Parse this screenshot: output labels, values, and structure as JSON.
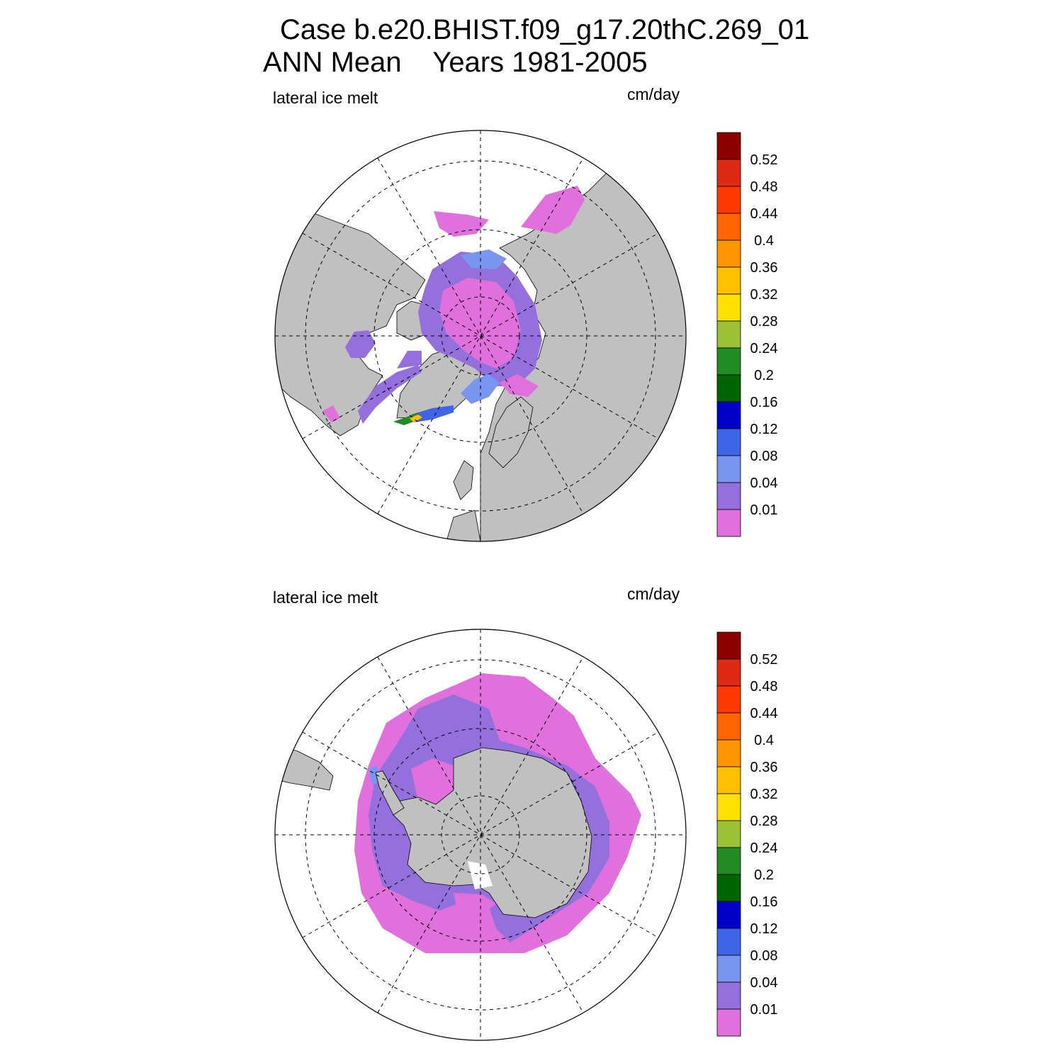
{
  "title": {
    "line1": "Case b.e20.BHIST.f09_g17.20thC.269_01",
    "line2": "ANN Mean    Years 1981-2005"
  },
  "panels": [
    {
      "variable_label": "lateral ice melt",
      "units_label": "cm/day",
      "hemisphere": "north"
    },
    {
      "variable_label": "lateral ice melt",
      "units_label": "cm/day",
      "hemisphere": "south"
    }
  ],
  "colorbar": {
    "labels": [
      "0.52",
      "0.48",
      "0.44",
      "0.4",
      "0.36",
      "0.32",
      "0.28",
      "0.24",
      "0.2",
      "0.16",
      "0.12",
      "0.08",
      "0.04",
      "0.01"
    ],
    "colors": [
      "#8b0000",
      "#dc2a14",
      "#ff3a00",
      "#ff6400",
      "#ff9600",
      "#ffc000",
      "#ffe000",
      "#9bc034",
      "#238b23",
      "#006400",
      "#0000c8",
      "#3f64e6",
      "#7896f0",
      "#9370db",
      "#e070dc"
    ]
  },
  "colors": {
    "land": "#c0c0c0",
    "ocean": "#ffffff",
    "lowest_level": "#e070dc",
    "second_level": "#9370db"
  }
}
